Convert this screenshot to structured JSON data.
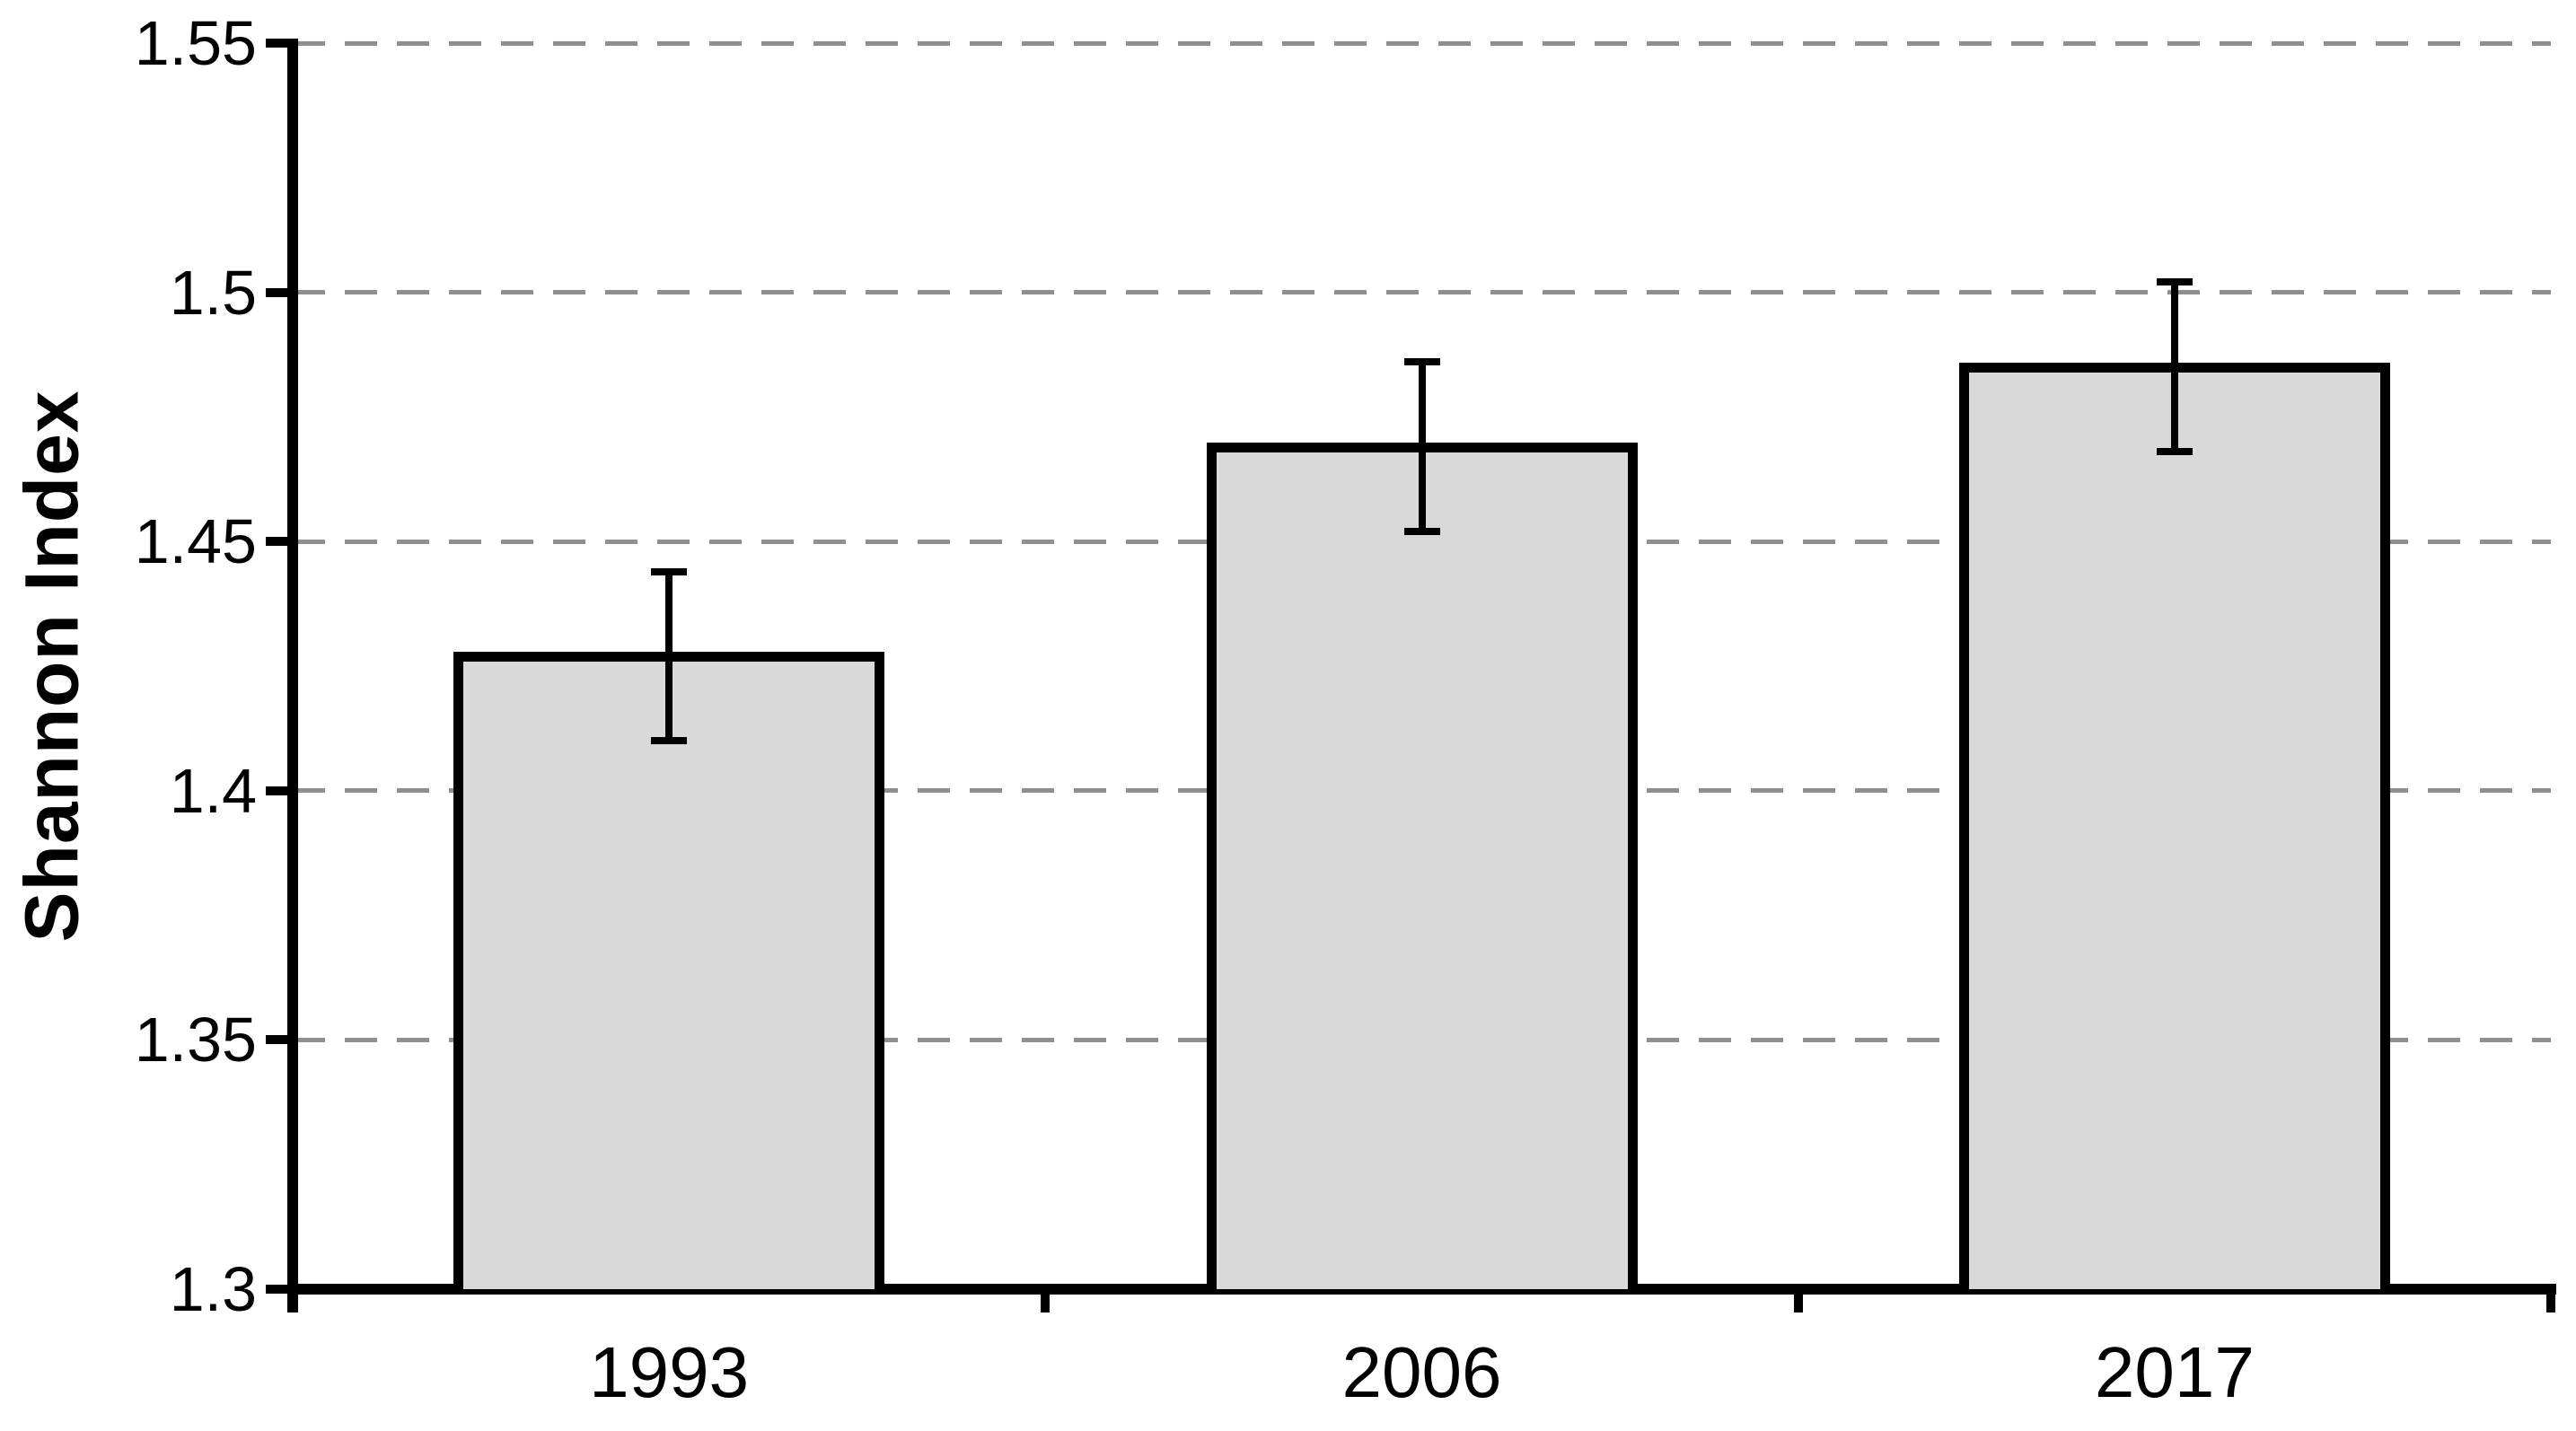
{
  "chart_data": {
    "type": "bar",
    "title": "",
    "xlabel": "",
    "ylabel": "Shannon Index",
    "categories": [
      "1993",
      "2006",
      "2017"
    ],
    "series": [
      {
        "name": "Shannon Index",
        "values": [
          1.427,
          1.469,
          1.485
        ],
        "errors": [
          0.017,
          0.017,
          0.017
        ],
        "error_upper": [
          1.444,
          1.486,
          1.502
        ],
        "error_lower": [
          1.41,
          1.452,
          1.468
        ]
      }
    ],
    "ylim": [
      1.3,
      1.55
    ],
    "yticks": [
      1.3,
      1.35,
      1.4,
      1.45,
      1.5,
      1.55
    ],
    "ytick_labels": [
      "1.3",
      "1.35",
      "1.4",
      "1.45",
      "1.5",
      "1.55"
    ],
    "grid": "horizontal-dashed",
    "legend": "none",
    "colors": {
      "bar_fill": "#d9d9d9",
      "bar_border": "#000000",
      "error_bar": "#000000",
      "axis": "#000000",
      "gridline": "#8f8f8f",
      "text": "#000000",
      "background": "#ffffff"
    }
  }
}
